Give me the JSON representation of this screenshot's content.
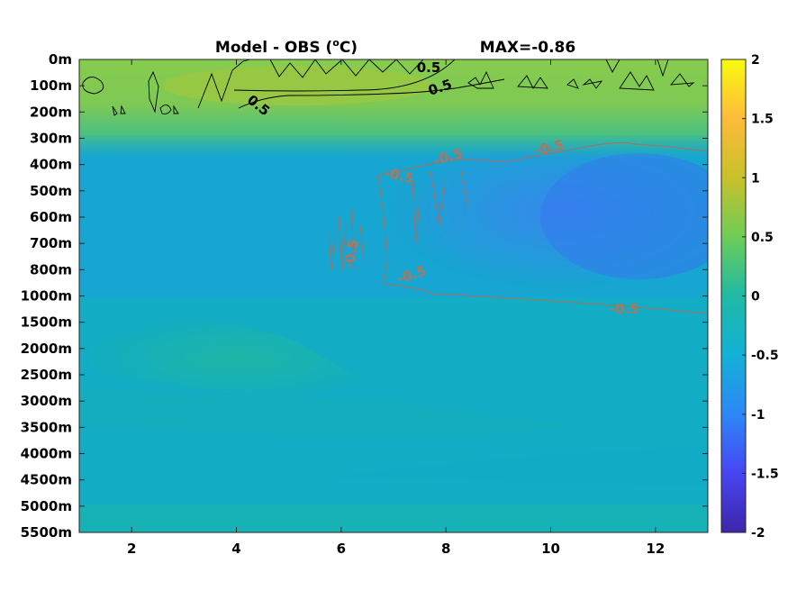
{
  "chart_data": {
    "type": "heatmap",
    "title": "Model - OBS (°C)",
    "title_main": "Model - OBS (",
    "title_sup": "o",
    "title_end": "C)",
    "title_right": "MAX=-0.86",
    "x_ticks": [
      "2",
      "4",
      "6",
      "8",
      "10",
      "12"
    ],
    "x_tick_values": [
      2,
      4,
      6,
      8,
      10,
      12
    ],
    "xlim": [
      1,
      13
    ],
    "y_ticks": [
      "0m",
      "100m",
      "200m",
      "300m",
      "400m",
      "500m",
      "600m",
      "700m",
      "800m",
      "1000m",
      "1500m",
      "2000m",
      "2500m",
      "3000m",
      "3500m",
      "4000m",
      "4500m",
      "5000m",
      "5500m"
    ],
    "colorbar": {
      "range": [
        -2,
        2
      ],
      "ticks": [
        "2",
        "1.5",
        "1",
        "0.5",
        "0",
        "-0.5",
        "-1",
        "-1.5",
        "-2"
      ],
      "colormap": "parula"
    },
    "contour_labels": [
      {
        "text": "0.5",
        "color": "#000000"
      },
      {
        "text": "0.5",
        "color": "#000000"
      },
      {
        "text": "0.5",
        "color": "#000000"
      },
      {
        "text": "-0.5",
        "color": "#b0765a"
      },
      {
        "text": "-0.5",
        "color": "#b0765a"
      },
      {
        "text": "-0.5",
        "color": "#b0765a"
      },
      {
        "text": "-0.5",
        "color": "#b0765a"
      },
      {
        "text": "-0.5",
        "color": "#b0765a"
      },
      {
        "text": "-0.5",
        "color": "#b0765a"
      }
    ],
    "grid": false
  }
}
